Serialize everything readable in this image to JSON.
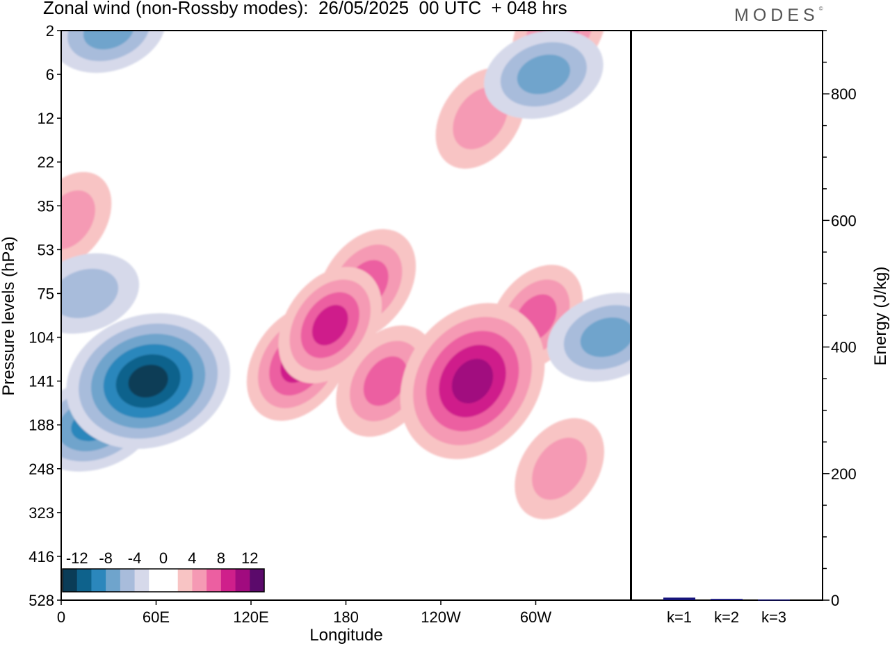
{
  "title": "Zonal wind (non-Rossby modes):  26/05/2025  00 UTC  + 048 hrs",
  "logo": "MODES",
  "logo_mark": "©",
  "colors": {
    "neg": [
      "#0a3c57",
      "#0e628c",
      "#2b87bc",
      "#6fa4cc",
      "#a8bcdb",
      "#d6d9ea"
    ],
    "zero": "#ffffff",
    "pos": [
      "#f8c4c4",
      "#f59ab4",
      "#ec5fa1",
      "#cf1f8b",
      "#a10b7f",
      "#5b0a6b"
    ],
    "bar": "#16147a"
  },
  "chart_data": [
    {
      "type": "heatmap",
      "title": "Zonal wind (non-Rossby modes):  26/05/2025  00 UTC  + 048 hrs",
      "xlabel": "Longitude",
      "ylabel": "Pressure levels (hPa)",
      "x_ticks": [
        "0",
        "60E",
        "120E",
        "180",
        "120W",
        "60W"
      ],
      "x_tick_degrees": [
        0,
        60,
        120,
        180,
        240,
        300
      ],
      "x_range_degrees": [
        0,
        360
      ],
      "y_ticks": [
        "2",
        "6",
        "12",
        "22",
        "35",
        "53",
        "75",
        "104",
        "141",
        "188",
        "248",
        "323",
        "416",
        "528"
      ],
      "y_scale": "pressure levels (top 2 hPa, bottom 528 hPa)",
      "colorbar": {
        "labels": [
          "-12",
          "-8",
          "-4",
          "0",
          "4",
          "8",
          "12"
        ],
        "levels": [
          -14,
          -12,
          -10,
          -8,
          -6,
          -4,
          -2,
          2,
          4,
          6,
          8,
          10,
          12,
          14
        ],
        "placement": "bottom-left, inside plot"
      },
      "features": [
        {
          "sign": "negative",
          "max_abs": 13,
          "lon": 55,
          "level": "141"
        },
        {
          "sign": "negative",
          "max_abs": 8,
          "lon": 20,
          "level": "188"
        },
        {
          "sign": "negative",
          "max_abs": 7,
          "lon": 345,
          "level": "104"
        },
        {
          "sign": "negative",
          "max_abs": 7,
          "lon": 305,
          "level": "6"
        },
        {
          "sign": "negative",
          "max_abs": 6,
          "lon": 30,
          "level": "2"
        },
        {
          "sign": "negative",
          "max_abs": 5,
          "lon": 15,
          "level": "75"
        },
        {
          "sign": "positive",
          "max_abs": 10,
          "lon": 260,
          "level": "141"
        },
        {
          "sign": "positive",
          "max_abs": 8,
          "lon": 150,
          "level": "124"
        },
        {
          "sign": "positive",
          "max_abs": 8,
          "lon": 170,
          "level": "95"
        },
        {
          "sign": "positive",
          "max_abs": 7,
          "lon": 193,
          "level": "70"
        },
        {
          "sign": "positive",
          "max_abs": 7,
          "lon": 205,
          "level": "141"
        },
        {
          "sign": "positive",
          "max_abs": 6,
          "lon": 300,
          "level": "90"
        },
        {
          "sign": "positive",
          "max_abs": 6,
          "lon": 315,
          "level": "2"
        },
        {
          "sign": "positive",
          "max_abs": 5,
          "lon": 315,
          "level": "248"
        },
        {
          "sign": "positive",
          "max_abs": 5,
          "lon": 265,
          "level": "12"
        },
        {
          "sign": "positive",
          "max_abs": 4,
          "lon": 5,
          "level": "40"
        }
      ]
    },
    {
      "type": "bar",
      "ylabel": "Energy (J/kg)",
      "categories": [
        "k=1",
        "k=2",
        "k=3"
      ],
      "values": [
        4,
        2,
        1
      ],
      "ylim": [
        0,
        900
      ],
      "y_ticks": [
        0,
        200,
        400,
        600,
        800
      ],
      "y_axis_side": "right"
    }
  ]
}
